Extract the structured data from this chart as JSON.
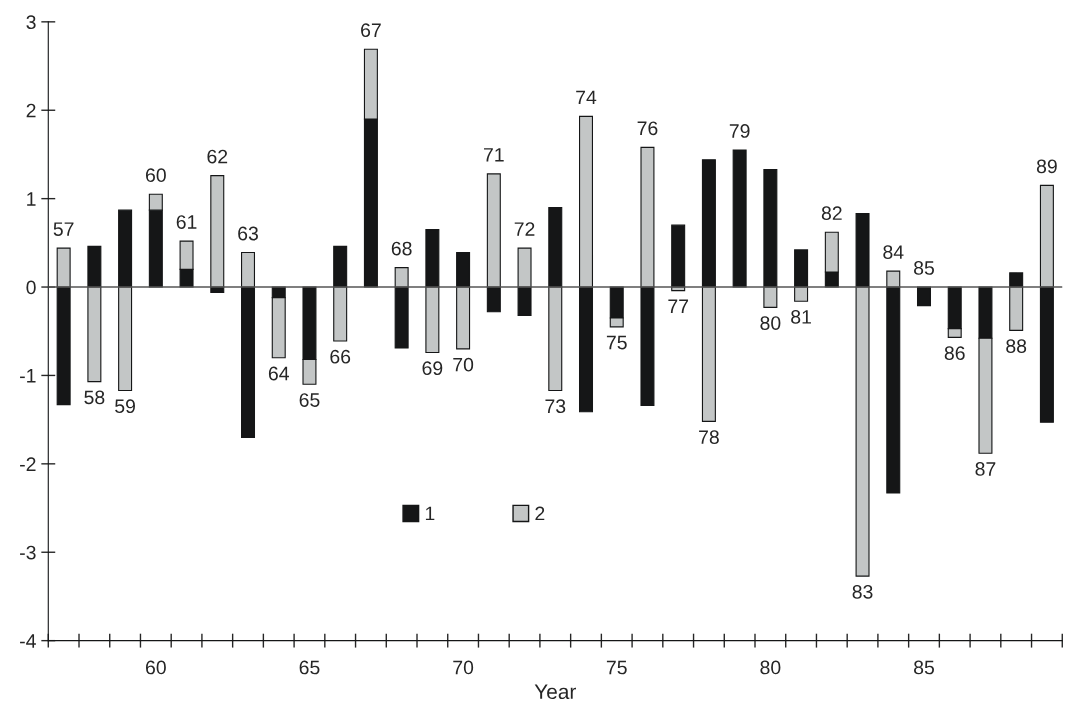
{
  "chart_data": {
    "type": "bar",
    "stacked": true,
    "xlabel": "Year",
    "categories": [
      null,
      null,
      null,
      "60",
      null,
      null,
      null,
      null,
      "65",
      null,
      null,
      null,
      null,
      "70",
      null,
      null,
      null,
      null,
      "75",
      null,
      null,
      null,
      null,
      "80",
      null,
      null,
      null,
      null,
      "85",
      null,
      null,
      null,
      null
    ],
    "series": [
      {
        "name": "1",
        "color": "#151617",
        "values": [
          -1.33,
          0.46,
          0.87,
          0.87,
          0.2,
          -0.06,
          -1.7,
          -0.12,
          -0.82,
          0.46,
          1.9,
          -0.69,
          0.65,
          0.39,
          -0.28,
          -0.32,
          0.9,
          -1.41,
          -0.35,
          -1.34,
          0.7,
          1.44,
          1.55,
          1.33,
          0.42,
          0.17,
          0.83,
          -2.33,
          -0.21,
          -0.47,
          -0.58,
          0.16,
          -1.53
        ]
      },
      {
        "name": "2",
        "color": "#c3c6c6",
        "values": [
          0.44,
          -1.07,
          -1.17,
          0.18,
          0.32,
          1.26,
          0.39,
          -0.68,
          -0.28,
          -0.61,
          0.79,
          0.22,
          -0.74,
          -0.7,
          1.28,
          0.44,
          -1.17,
          1.93,
          -0.1,
          1.58,
          -0.04,
          -1.52,
          null,
          -0.23,
          -0.16,
          0.45,
          -3.27,
          0.18,
          null,
          -0.1,
          -1.3,
          -0.49,
          1.15
        ]
      }
    ],
    "annotations": [
      {
        "text": "57",
        "y": 0.44
      },
      {
        "text": "58",
        "y": -1.07
      },
      {
        "text": "59",
        "y": -1.17
      },
      {
        "text": "60",
        "y": 1.05
      },
      {
        "text": "61",
        "y": 0.52
      },
      {
        "text": "62",
        "y": 1.26
      },
      {
        "text": "63",
        "y": 0.39
      },
      {
        "text": "64",
        "y": -0.8
      },
      {
        "text": "65",
        "y": -1.1
      },
      {
        "text": "66",
        "y": -0.61
      },
      {
        "text": "67",
        "y": 2.69
      },
      {
        "text": "68",
        "y": 0.22
      },
      {
        "text": "69",
        "y": -0.74
      },
      {
        "text": "70",
        "y": -0.7
      },
      {
        "text": "71",
        "y": 1.28
      },
      {
        "text": "72",
        "y": 0.44
      },
      {
        "text": "73",
        "y": -1.17
      },
      {
        "text": "74",
        "y": 1.93
      },
      {
        "text": "75",
        "y": -0.45
      },
      {
        "text": "76",
        "y": 1.58
      },
      {
        "text": "77",
        "y": -0.04
      },
      {
        "text": "78",
        "y": -1.52
      },
      {
        "text": "79",
        "y": 1.55
      },
      {
        "text": "80",
        "y": -0.23
      },
      {
        "text": "81",
        "y": -0.16
      },
      {
        "text": "82",
        "y": 0.62
      },
      {
        "text": "83",
        "y": -3.27
      },
      {
        "text": "84",
        "y": 0.18
      },
      {
        "text": "85",
        "y": 0
      },
      {
        "text": "86",
        "y": -0.57
      },
      {
        "text": "87",
        "y": -1.88
      },
      {
        "text": "88",
        "y": -0.49
      },
      {
        "text": "89",
        "y": 1.15
      }
    ],
    "ref_lines": [
      {
        "axis": "y",
        "value": 0,
        "color": "#555555"
      }
    ],
    "ylim": [
      -4,
      3
    ],
    "yticks": [
      -4,
      -3,
      -2,
      -1,
      0,
      1,
      2,
      3
    ],
    "legend": "bottom"
  }
}
